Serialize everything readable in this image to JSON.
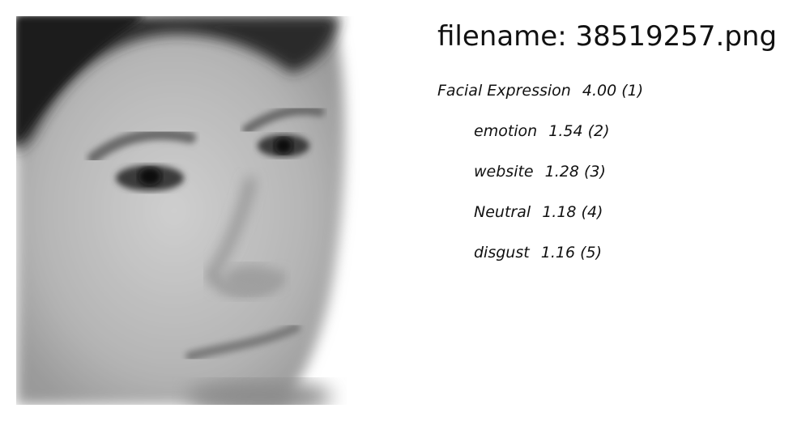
{
  "filename_label": "filename: 38519257.png",
  "labels": [
    {
      "name": "Facial Expression",
      "score": "4.00",
      "rank": "(1)"
    },
    {
      "name": "emotion",
      "score": "1.54",
      "rank": "(2)"
    },
    {
      "name": "website",
      "score": "1.28",
      "rank": "(3)"
    },
    {
      "name": "Neutral",
      "score": "1.18",
      "rank": "(4)"
    },
    {
      "name": "disgust",
      "score": "1.16",
      "rank": "(5)"
    }
  ],
  "colors": {
    "background": "#ffffff",
    "text": "#111111"
  }
}
